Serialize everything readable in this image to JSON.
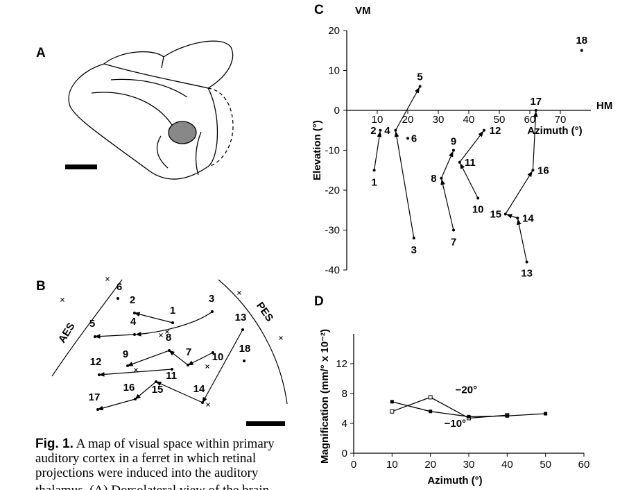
{
  "panels": {
    "a": {
      "label": "A"
    },
    "b": {
      "label": "B",
      "points": [
        "1",
        "2",
        "3",
        "4",
        "5",
        "6",
        "7",
        "8",
        "9",
        "10",
        "11",
        "12",
        "13",
        "14",
        "15",
        "16",
        "17",
        "18"
      ],
      "regions": [
        "AES",
        "PES"
      ]
    }
  },
  "chart_data": [
    {
      "type": "scatter",
      "panel_label": "C",
      "x_axis_name": "HM",
      "y_axis_name": "VM",
      "xlabel": "Azimuth (°)",
      "ylabel": "Elevation (°)",
      "point_labels": [
        "1",
        "2",
        "3",
        "4",
        "5",
        "6",
        "7",
        "8",
        "9",
        "10",
        "11",
        "12",
        "13",
        "14",
        "15",
        "16",
        "17",
        "18"
      ],
      "x": [
        9,
        11,
        22,
        16,
        24,
        20,
        35,
        31,
        35,
        43,
        37,
        45,
        59,
        56,
        52,
        61,
        62,
        77
      ],
      "values": [
        -15,
        -5,
        -32,
        -5,
        6,
        -7,
        -30,
        -17,
        -10,
        -22,
        -13,
        -5,
        -38,
        -27,
        -26,
        -15,
        0,
        15
      ],
      "color": "#000000",
      "xlim": [
        0,
        80
      ],
      "ylim": [
        -40,
        20
      ],
      "xticks": [
        10,
        20,
        30,
        40,
        50,
        60,
        70
      ],
      "yticks": [
        -40,
        -30,
        -20,
        -10,
        0,
        10,
        20
      ]
    },
    {
      "type": "line",
      "panel_label": "D",
      "xlabel": "Azimuth (°)",
      "ylabel": "Magnification (mm/° x 10⁻²)",
      "xlim": [
        0,
        60
      ],
      "ylim": [
        0,
        16
      ],
      "xticks": [
        0,
        10,
        20,
        30,
        40,
        50,
        60
      ],
      "yticks": [
        0,
        4,
        8,
        12
      ],
      "series": [
        {
          "name": "−20°",
          "color": "#000000",
          "marker": "open-square",
          "x": [
            10,
            20,
            30,
            40
          ],
          "values": [
            5.6,
            7.5,
            4.7,
            5.1
          ]
        },
        {
          "name": "−10°",
          "color": "#000000",
          "marker": "filled-circle",
          "x": [
            10,
            20,
            30,
            40,
            50
          ],
          "values": [
            6.9,
            5.6,
            4.9,
            5.0,
            5.3
          ]
        }
      ]
    }
  ],
  "caption": {
    "label": "Fig. 1.",
    "lines": [
      " A map of visual space within primary",
      "auditory cortex in a ferret in which retinal",
      "projections were induced into the auditory",
      "thalamus. (A) Dorsolateral view of the brain"
    ]
  }
}
